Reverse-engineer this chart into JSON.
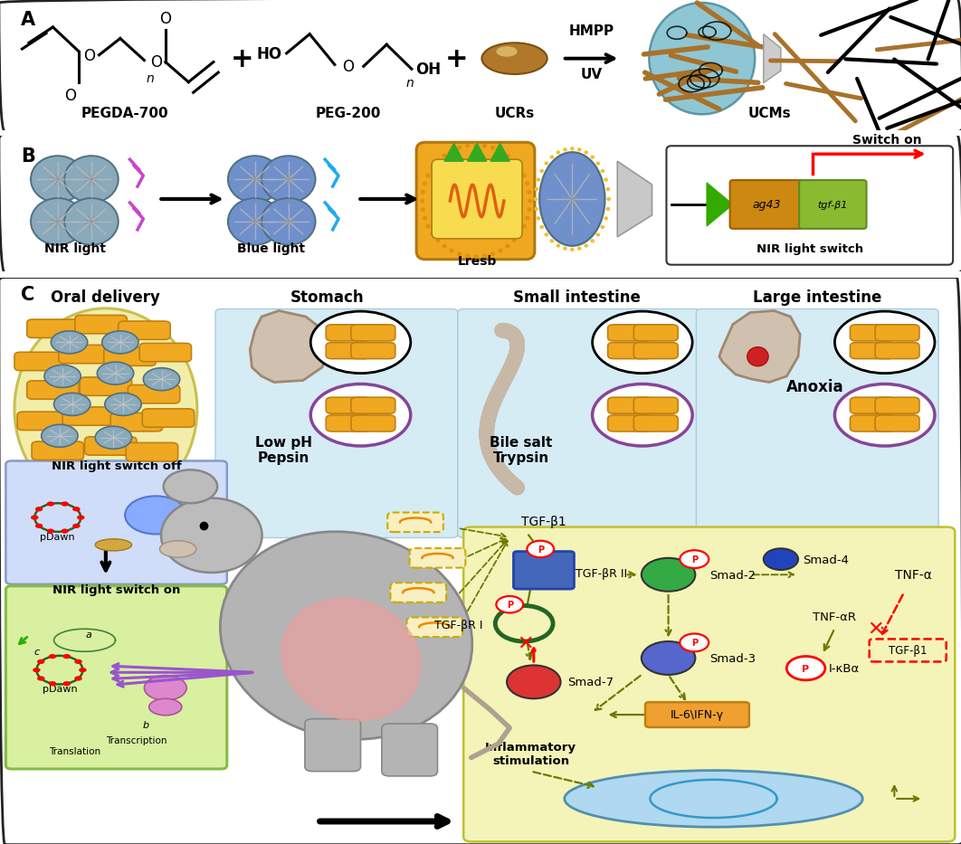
{
  "background_color": "#ffffff",
  "panel_A_label": "A",
  "panel_B_label": "B",
  "panel_C_label": "C",
  "ucr_color": "#b07828",
  "ucm_color": "#7bbccc",
  "orange_bact": "#f0a820",
  "blue_sphere": "#7090cc",
  "teal_sphere": "#7aacba",
  "gene_ag43": "#cc8810",
  "gene_tgf": "#88bb30",
  "cell_bg": "#f4f4b8",
  "nucleus_bg": "#b0d8f0",
  "switch_off_bg": "#d0ddf8",
  "switch_on_bg": "#d8f0a0",
  "stomach_bg": "#cce8f4",
  "olive": "#6a7a00",
  "red": "#dd2222"
}
